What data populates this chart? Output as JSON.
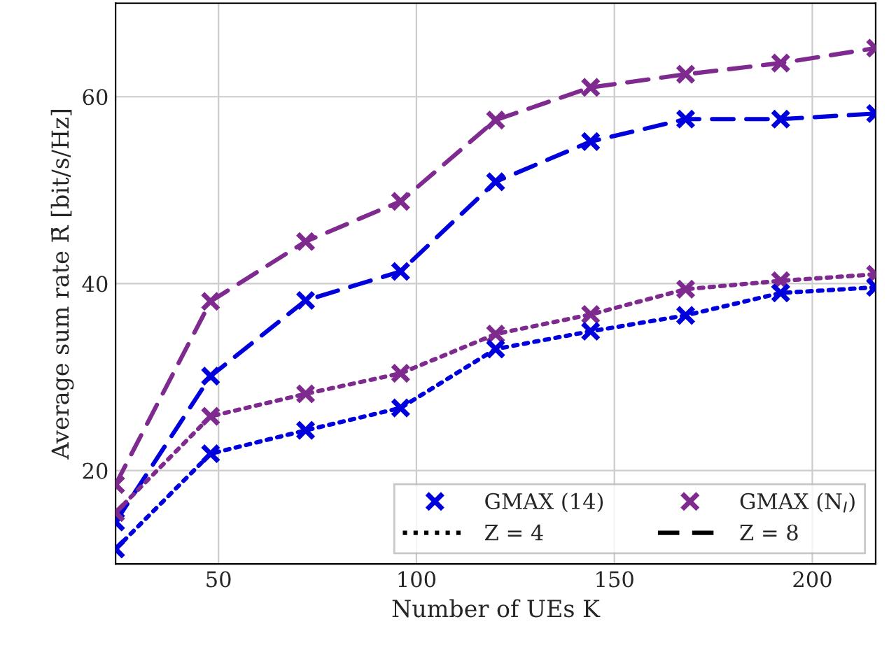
{
  "chart_data": {
    "type": "line",
    "xlabel": "Number of UEs K",
    "ylabel": "Average sum rate R̄ [bit/s/Hz]",
    "x": [
      24,
      48,
      72,
      96,
      120,
      144,
      168,
      192,
      216
    ],
    "series": [
      {
        "name": "GMAX (14)",
        "color": "#0000dd",
        "line_style": "dotted",
        "values": [
          11.6,
          21.8,
          24.3,
          26.7,
          33.0,
          34.9,
          36.6,
          39.0,
          39.6
        ]
      },
      {
        "name": "GMAX (N$_{I}$)",
        "color": "#7f2a8f",
        "line_style": "dotted",
        "values": [
          15.5,
          25.8,
          28.2,
          30.4,
          34.6,
          36.7,
          39.4,
          40.3,
          41.0
        ]
      },
      {
        "color": "#0000dd",
        "line_style": "dashed",
        "values": [
          14.5,
          30.1,
          38.2,
          41.3,
          50.9,
          55.2,
          57.6,
          57.6,
          58.2
        ]
      },
      {
        "color": "#7f2a8f",
        "line_style": "dashed",
        "values": [
          18.5,
          38.1,
          44.5,
          48.8,
          57.5,
          61.0,
          62.4,
          63.6,
          65.2
        ]
      }
    ],
    "annotations": [
      "Z = 4",
      "Z = 8"
    ],
    "marker": "cross",
    "xlim": [
      24,
      216
    ],
    "ylim": [
      10,
      70
    ],
    "xticks": [
      50,
      100,
      150,
      200
    ],
    "yticks": [
      20,
      40,
      60
    ],
    "grid": true,
    "legend": "bottom right"
  }
}
